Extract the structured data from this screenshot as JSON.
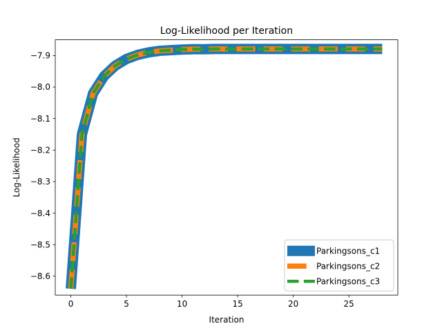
{
  "chart_data": {
    "type": "line",
    "title": "Log-Likelihood per Iteration",
    "xlabel": "Iteration",
    "ylabel": "Log-Likelihood",
    "xlim": [
      -1.4,
      29.4
    ],
    "ylim": [
      -8.66,
      -7.85
    ],
    "x_ticks": [
      0,
      5,
      10,
      15,
      20,
      25
    ],
    "y_ticks": [
      -8.6,
      -8.5,
      -8.4,
      -8.3,
      -8.2,
      -8.1,
      -8.0,
      -7.9
    ],
    "x_tick_labels": [
      "0",
      "5",
      "10",
      "15",
      "20",
      "25"
    ],
    "y_tick_labels": [
      "−8.6",
      "−8.5",
      "−8.4",
      "−8.3",
      "−8.2",
      "−8.1",
      "−8.0",
      "−7.9"
    ],
    "grid": false,
    "legend_position": "lower right",
    "x": [
      0,
      1,
      2,
      3,
      4,
      5,
      6,
      7,
      8,
      9,
      10,
      11,
      12,
      13,
      14,
      15,
      16,
      17,
      18,
      19,
      20,
      21,
      22,
      23,
      24,
      25,
      26,
      27,
      28
    ],
    "series": [
      {
        "name": "Parkingsons_c1",
        "color": "#1f77b4",
        "style": "solid-thick",
        "values": [
          -8.64,
          -8.15,
          -8.02,
          -7.965,
          -7.932,
          -7.911,
          -7.898,
          -7.89,
          -7.885,
          -7.883,
          -7.881,
          -7.88,
          -7.88,
          -7.879,
          -7.879,
          -7.879,
          -7.879,
          -7.879,
          -7.879,
          -7.879,
          -7.879,
          -7.879,
          -7.879,
          -7.879,
          -7.879,
          -7.879,
          -7.879,
          -7.879,
          -7.879
        ]
      },
      {
        "name": "Parkingsons_c2",
        "color": "#ff7f0e",
        "style": "dashed",
        "values": [
          -8.64,
          -8.15,
          -8.02,
          -7.965,
          -7.932,
          -7.911,
          -7.898,
          -7.89,
          -7.885,
          -7.883,
          -7.881,
          -7.88,
          -7.88,
          -7.879,
          -7.879,
          -7.879,
          -7.879,
          -7.879,
          -7.879,
          -7.879,
          -7.879,
          -7.879,
          -7.879,
          -7.879,
          -7.879,
          -7.879,
          -7.879,
          -7.879,
          -7.879
        ]
      },
      {
        "name": "Parkingsons_c3",
        "color": "#2ca02c",
        "style": "dashed-thin",
        "values": [
          -8.64,
          -8.15,
          -8.02,
          -7.965,
          -7.932,
          -7.911,
          -7.898,
          -7.89,
          -7.885,
          -7.883,
          -7.881,
          -7.88,
          -7.88,
          -7.879,
          -7.879,
          -7.879,
          -7.879,
          -7.879,
          -7.879,
          -7.879,
          -7.879,
          -7.879,
          -7.879,
          -7.879,
          -7.879,
          -7.879,
          -7.879,
          -7.879,
          -7.879
        ]
      }
    ]
  }
}
